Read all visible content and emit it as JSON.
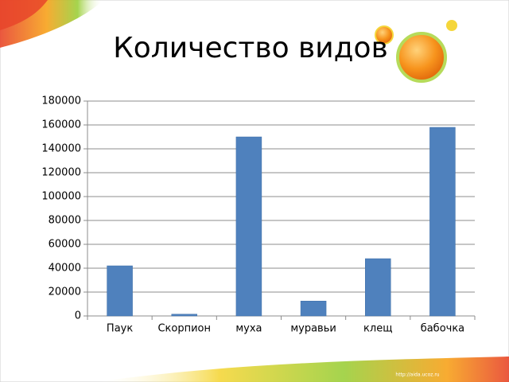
{
  "chart_data": {
    "type": "bar",
    "title": "Количество видов",
    "categories": [
      "Паук",
      "Скорпион",
      "муха",
      "муравьи",
      "клещ",
      "бабочка"
    ],
    "values": [
      42000,
      1500,
      150000,
      12500,
      48000,
      158000
    ],
    "color": "#4f81bd",
    "ylim": [
      0,
      180000
    ],
    "yticks": [
      0,
      20000,
      40000,
      60000,
      80000,
      100000,
      120000,
      140000,
      160000,
      180000
    ],
    "grid": true
  },
  "footer": "http://aida.ucoz.ru"
}
